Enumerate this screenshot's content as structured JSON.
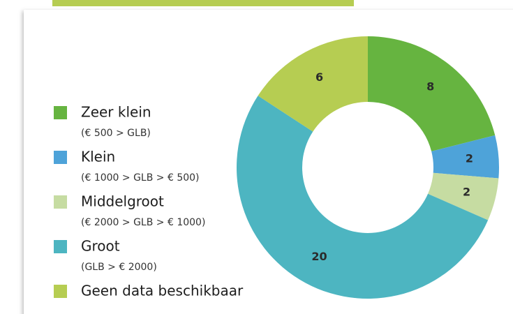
{
  "chart_data": {
    "type": "pie",
    "donut": true,
    "categories": [
      "Zeer klein",
      "Klein",
      "Middelgroot",
      "Groot",
      "Geen data beschikbaar"
    ],
    "legend_notes": [
      "(€ 500 > GLB)",
      "(€ 1000 > GLB > € 500)",
      "(€ 2000 > GLB > € 1000)",
      "(GLB > € 2000)",
      null
    ],
    "values": [
      8,
      2,
      2,
      20,
      6
    ],
    "colors": [
      "#66b440",
      "#4ea3d9",
      "#c6dca2",
      "#4db5c1",
      "#b6cd52"
    ]
  }
}
